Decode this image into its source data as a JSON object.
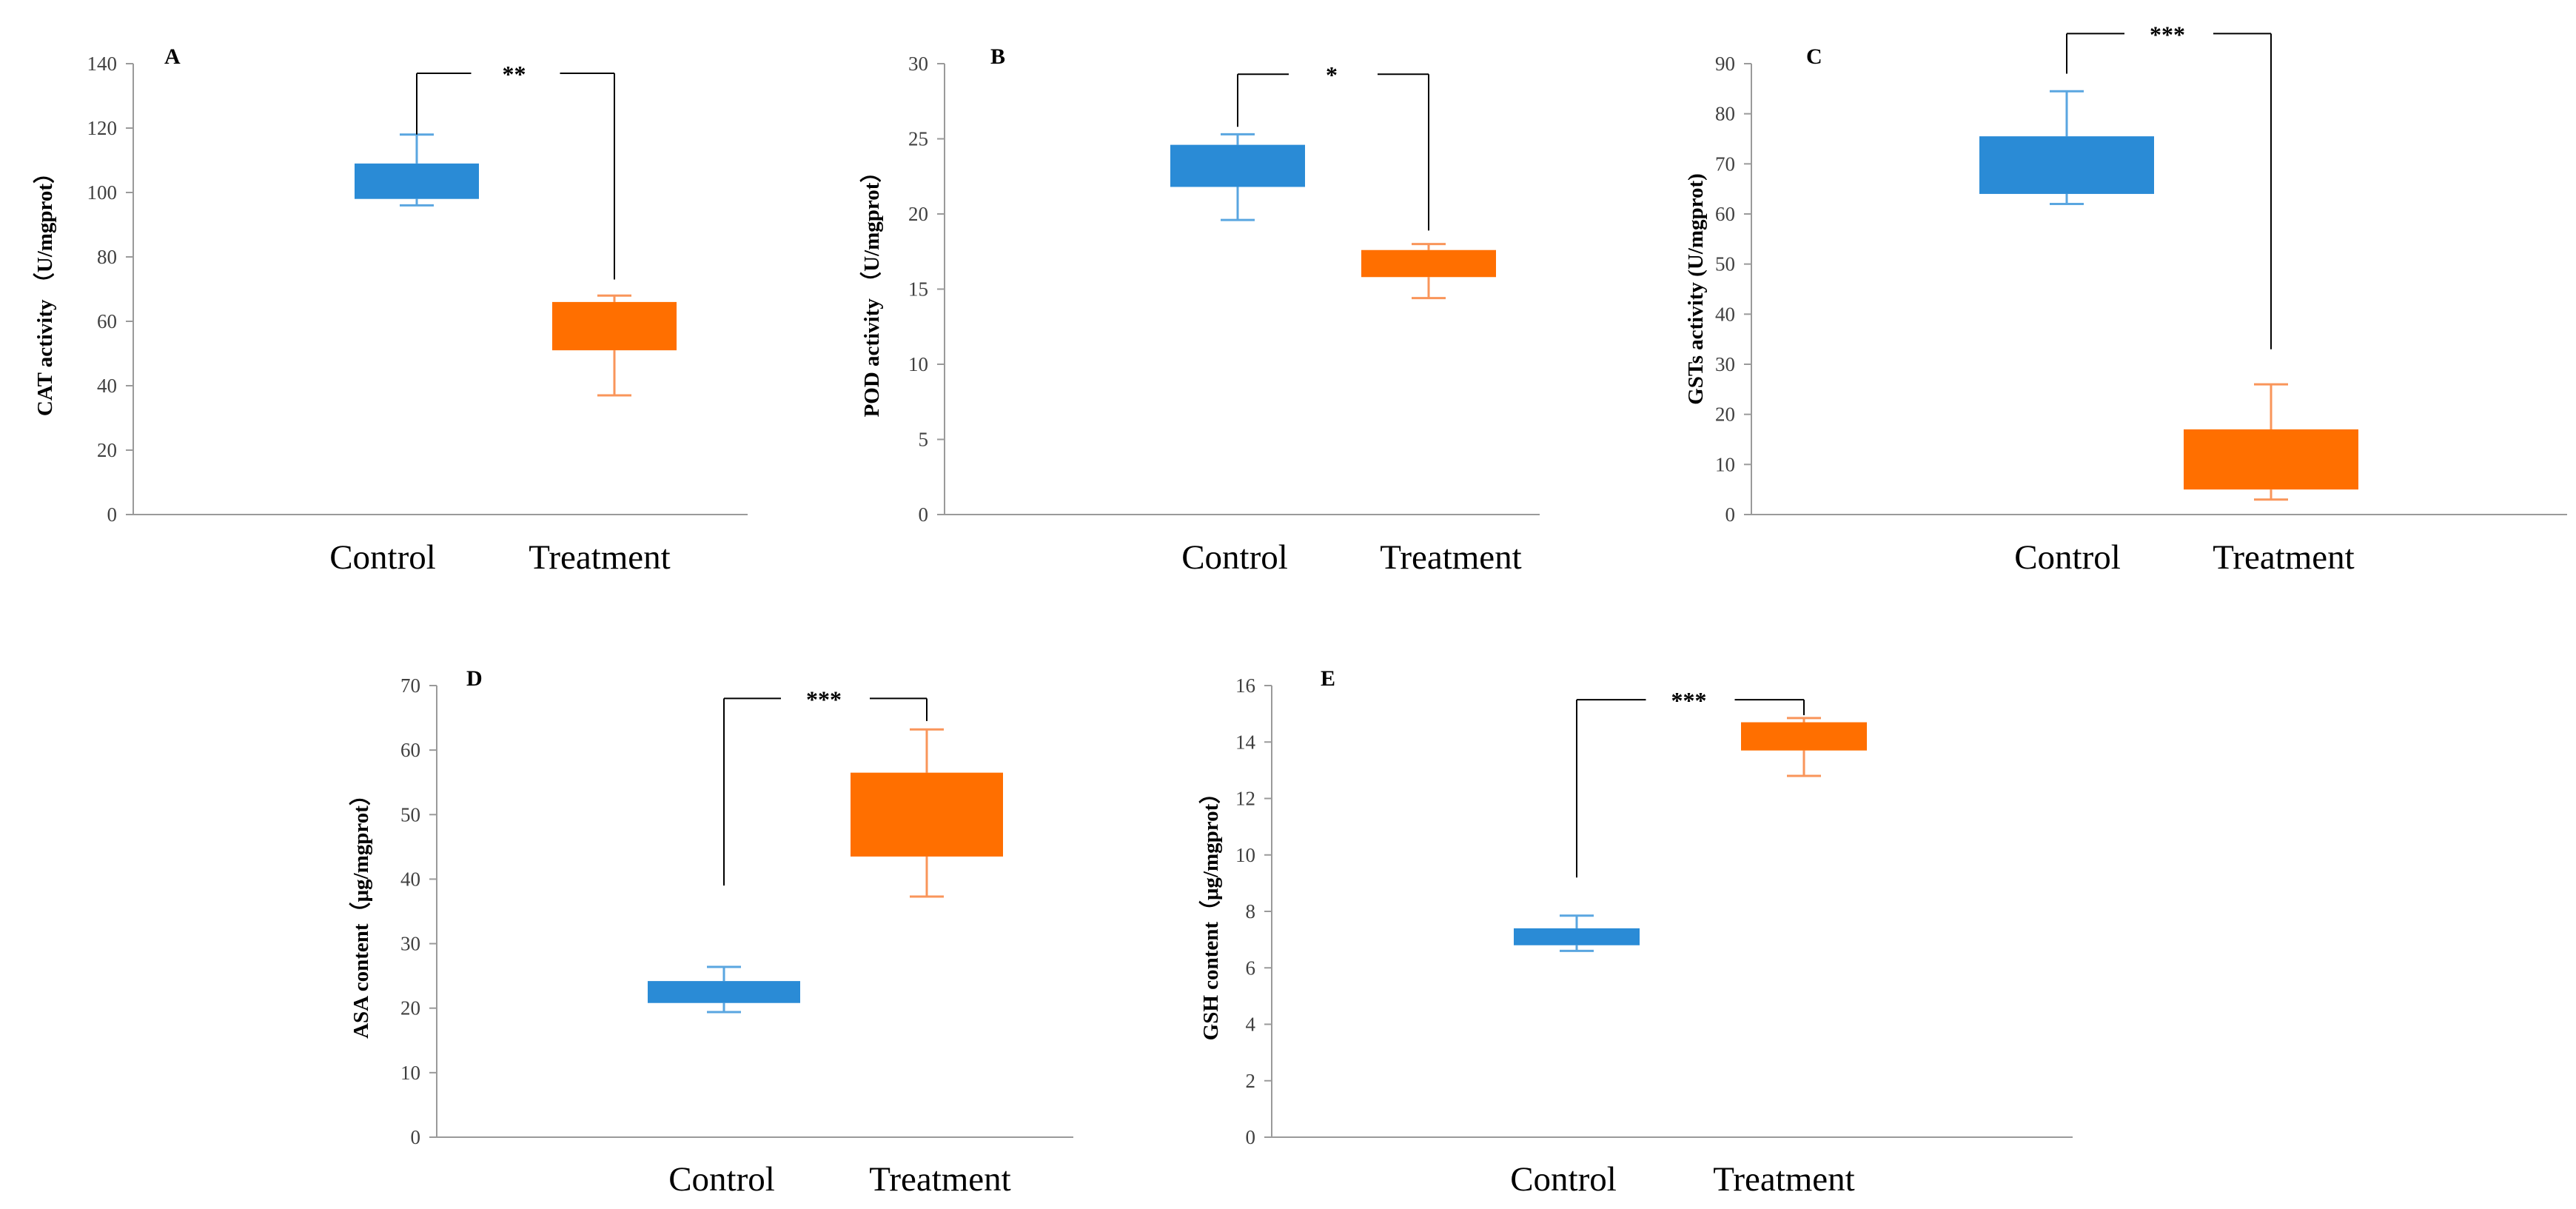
{
  "colors": {
    "control": "#2a8bd6",
    "control_whisker": "#5aa6e0",
    "treatment": "#ff6f00",
    "treatment_whisker": "#f9955a",
    "axis": "#9a9a9a",
    "bracket": "#000000"
  },
  "chart_data": [
    {
      "panel": "A",
      "type": "box",
      "ylabel": "CAT activity （U/mgprot）",
      "ylim": [
        0,
        140
      ],
      "yticks": [
        0,
        20,
        40,
        60,
        80,
        100,
        120,
        140
      ],
      "categories": [
        "Control",
        "Treatment"
      ],
      "boxes": [
        {
          "group": "Control",
          "whisker_low": 96,
          "q1": 98,
          "q3": 109,
          "whisker_high": 118
        },
        {
          "group": "Treatment",
          "whisker_low": 37,
          "q1": 51,
          "q3": 66,
          "whisker_high": 68
        }
      ],
      "significance": "**",
      "bracket_top": 137,
      "bracket_left_end": 118,
      "bracket_right_end": 73
    },
    {
      "panel": "B",
      "type": "box",
      "ylabel": "POD activity （U/mgprot）",
      "ylim": [
        0,
        30
      ],
      "yticks": [
        0,
        5,
        10,
        15,
        20,
        25,
        30
      ],
      "categories": [
        "Control",
        "Treatment"
      ],
      "boxes": [
        {
          "group": "Control",
          "whisker_low": 19.6,
          "q1": 21.8,
          "q3": 24.6,
          "whisker_high": 25.3
        },
        {
          "group": "Treatment",
          "whisker_low": 14.4,
          "q1": 15.8,
          "q3": 17.6,
          "whisker_high": 18.0
        }
      ],
      "significance": "*",
      "bracket_top": 29.3,
      "bracket_left_end": 25.8,
      "bracket_right_end": 18.9
    },
    {
      "panel": "C",
      "type": "box",
      "ylabel": "GSTs activity (U/mgprot)",
      "ylim": [
        0,
        90
      ],
      "yticks": [
        0,
        10,
        20,
        30,
        40,
        50,
        60,
        70,
        80,
        90
      ],
      "categories": [
        "Control",
        "Treatment"
      ],
      "boxes": [
        {
          "group": "Control",
          "whisker_low": 62,
          "q1": 64,
          "q3": 75.5,
          "whisker_high": 84.5
        },
        {
          "group": "Treatment",
          "whisker_low": 3,
          "q1": 5,
          "q3": 17,
          "whisker_high": 26
        }
      ],
      "significance": "***",
      "bracket_top": 96,
      "bracket_left_end": 88,
      "bracket_right_end": 33
    },
    {
      "panel": "D",
      "type": "box",
      "ylabel": "ASA content（μg/mgprot）",
      "ylim": [
        0,
        70
      ],
      "yticks": [
        0,
        10,
        20,
        30,
        40,
        50,
        60,
        70
      ],
      "categories": [
        "Control",
        "Treatment"
      ],
      "boxes": [
        {
          "group": "Control",
          "whisker_low": 19.4,
          "q1": 20.8,
          "q3": 24.2,
          "whisker_high": 26.4
        },
        {
          "group": "Treatment",
          "whisker_low": 37.3,
          "q1": 43.5,
          "q3": 56.5,
          "whisker_high": 63.2
        }
      ],
      "significance": "***",
      "bracket_top": 68,
      "bracket_left_end": 39,
      "bracket_right_end": 64.5
    },
    {
      "panel": "E",
      "type": "box",
      "ylabel": "GSH content（μg/mgprot）",
      "ylim": [
        0,
        16
      ],
      "yticks": [
        0,
        2,
        4,
        6,
        8,
        10,
        12,
        14,
        16
      ],
      "categories": [
        "Control",
        "Treatment"
      ],
      "boxes": [
        {
          "group": "Control",
          "whisker_low": 6.6,
          "q1": 6.8,
          "q3": 7.4,
          "whisker_high": 7.85
        },
        {
          "group": "Treatment",
          "whisker_low": 12.8,
          "q1": 13.7,
          "q3": 14.7,
          "whisker_high": 14.85
        }
      ],
      "significance": "***",
      "bracket_top": 15.5,
      "bracket_left_end": 9.2,
      "bracket_right_end": 14.95
    }
  ]
}
